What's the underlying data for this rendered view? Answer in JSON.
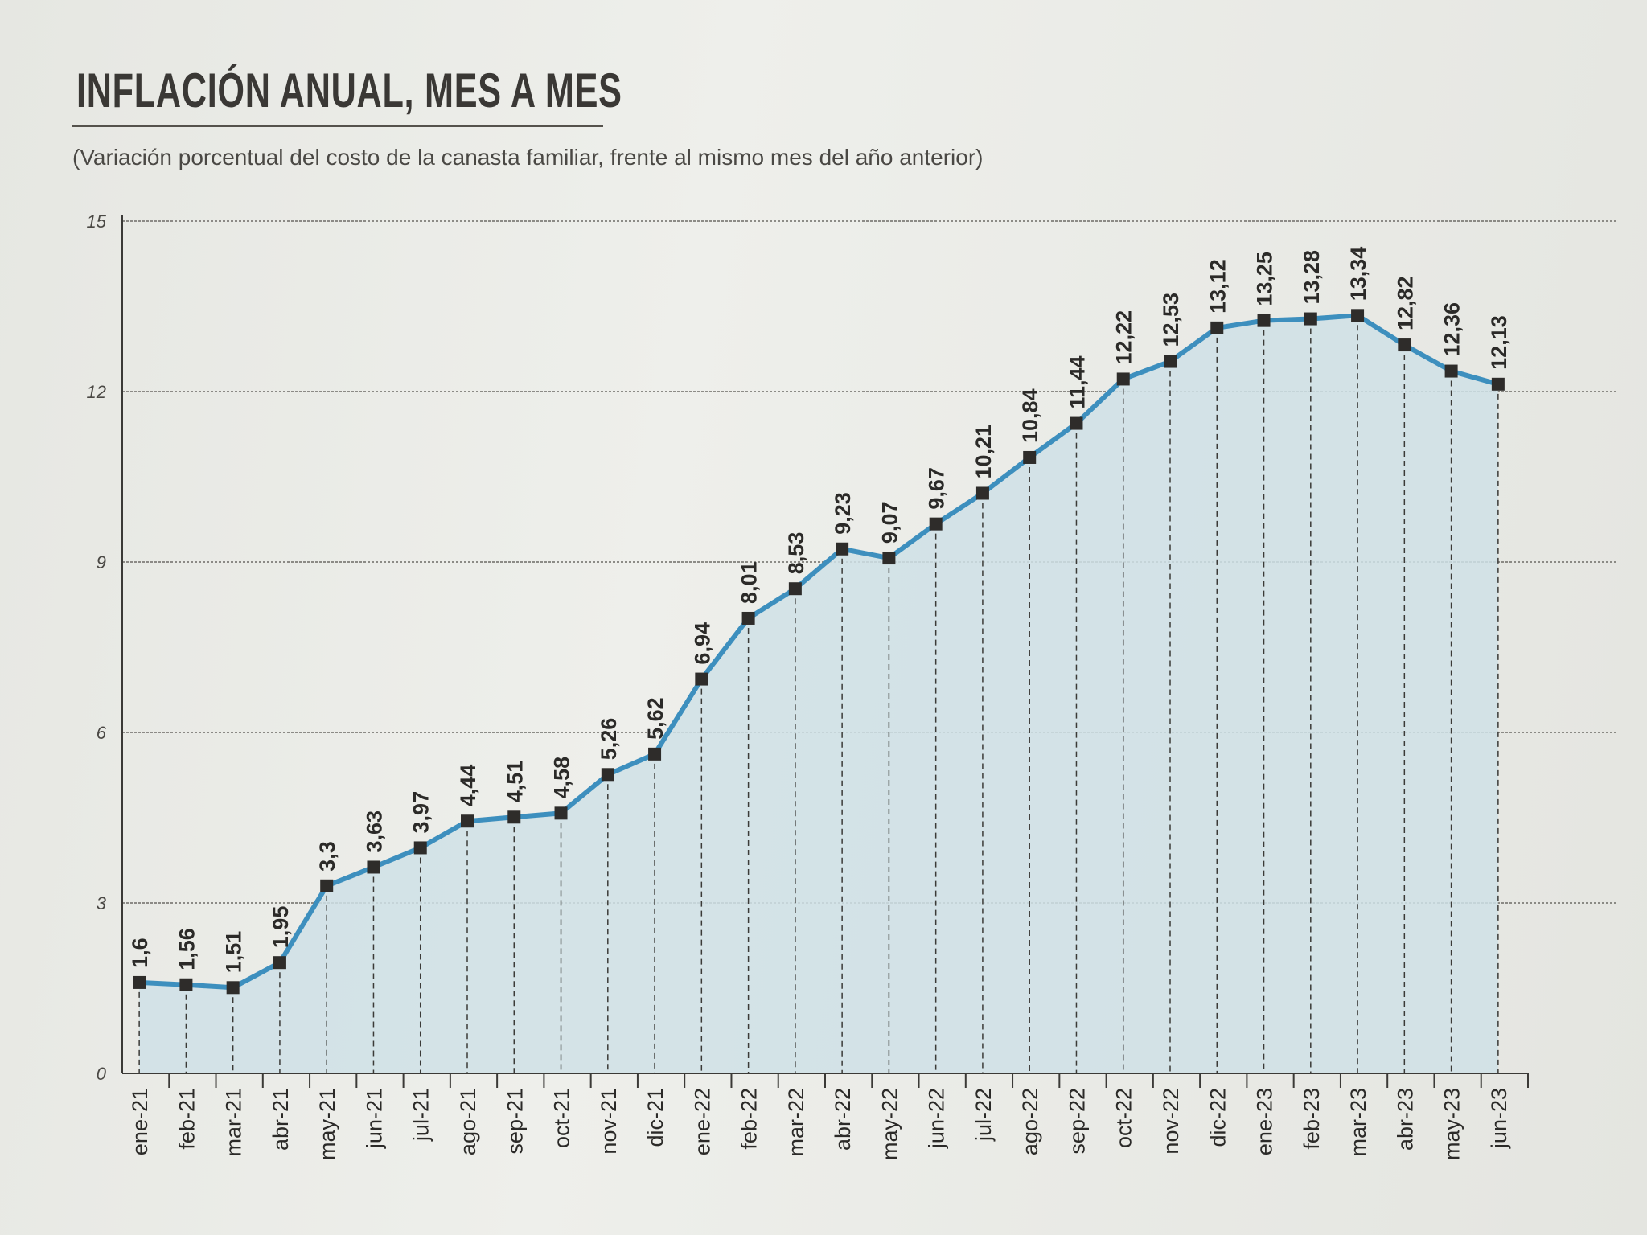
{
  "chart_data": {
    "type": "area",
    "title": "INFLACIÓN ANUAL, MES A MES",
    "subtitle": "(Variación porcentual del costo de la canasta familiar, frente al mismo mes del año anterior)",
    "xlabel": "",
    "ylabel": "",
    "ylim": [
      0,
      15
    ],
    "yticks": [
      "0",
      "3",
      "6",
      "9",
      "12",
      "15"
    ],
    "grid": true,
    "categories": [
      "ene-21",
      "feb-21",
      "mar-21",
      "abr-21",
      "may-21",
      "jun-21",
      "jul-21",
      "ago-21",
      "sep-21",
      "oct-21",
      "nov-21",
      "dic-21",
      "ene-22",
      "feb-22",
      "mar-22",
      "abr-22",
      "may-22",
      "jun-22",
      "jul-22",
      "ago-22",
      "sep-22",
      "oct-22",
      "nov-22",
      "dic-22",
      "ene-23",
      "feb-23",
      "mar-23",
      "abr-23",
      "may-23",
      "jun-23"
    ],
    "values": [
      1.6,
      1.56,
      1.51,
      1.95,
      3.3,
      3.63,
      3.97,
      4.44,
      4.51,
      4.58,
      5.26,
      5.62,
      6.94,
      8.01,
      8.53,
      9.23,
      9.07,
      9.67,
      10.21,
      10.84,
      11.44,
      12.22,
      12.53,
      13.12,
      13.25,
      13.28,
      13.34,
      12.82,
      12.36,
      12.13
    ],
    "data_labels": [
      "1,6",
      "1,56",
      "1,51",
      "1,95",
      "3,3",
      "3,63",
      "3,97",
      "4,44",
      "4,51",
      "4,58",
      "5,26",
      "5,62",
      "6,94",
      "8,01",
      "8,53",
      "9,23",
      "9,07",
      "9,67",
      "10,21",
      "10,84",
      "11,44",
      "12,22",
      "12,53",
      "13,12",
      "13,25",
      "13,28",
      "13,34",
      "12,82",
      "12,36",
      "12,13"
    ],
    "colors": {
      "line": "#3d8fbe",
      "fill": "#cfe0e6",
      "marker": "#2e2c2a"
    }
  }
}
